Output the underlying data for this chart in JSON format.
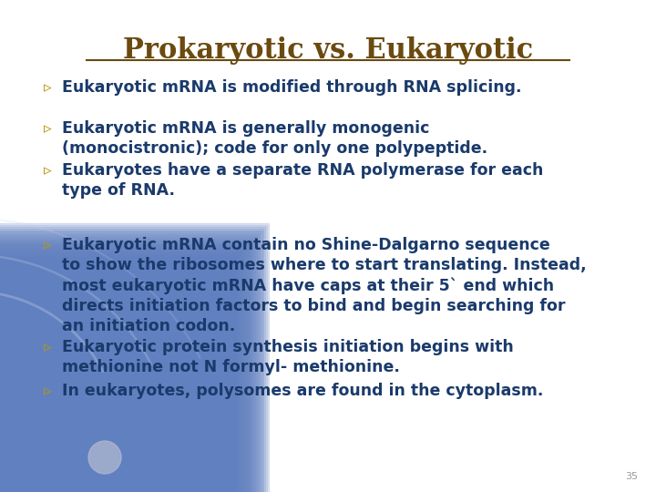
{
  "title": "Prokaryotic vs. Eukaryotic",
  "title_color": "#6B4A10",
  "title_fontsize": 22,
  "background_color": "#FFFFFF",
  "bullet_color": "#B8960A",
  "text_color": "#1a3a6b",
  "slide_number": "35",
  "bullets": [
    "Eukaryotic mRNA is modified through RNA splicing.",
    "Eukaryotic mRNA is generally monogenic\n(monocistronic); code for only one polypeptide.",
    "Eukaryotes have a separate RNA polymerase for each\ntype of RNA.",
    "Eukaryotic mRNA contain no Shine-Dalgarno sequence\nto show the ribosomes where to start translating. Instead,\nmost eukaryotic mRNA have caps at their 5` end which\ndirects initiation factors to bind and begin searching for\nan initiation codon.",
    "Eukaryotic protein synthesis initiation begins with\nmethionine not N formyl- methionine.",
    "In eukaryotes, polysomes are found in the cytoplasm."
  ],
  "font_family": "DejaVu Sans",
  "bullet_fontsize": 12.5,
  "decoration_color_inner": "#c8d0e8",
  "decoration_color_outer": "#7080b0",
  "grad_color": "#6080c0"
}
